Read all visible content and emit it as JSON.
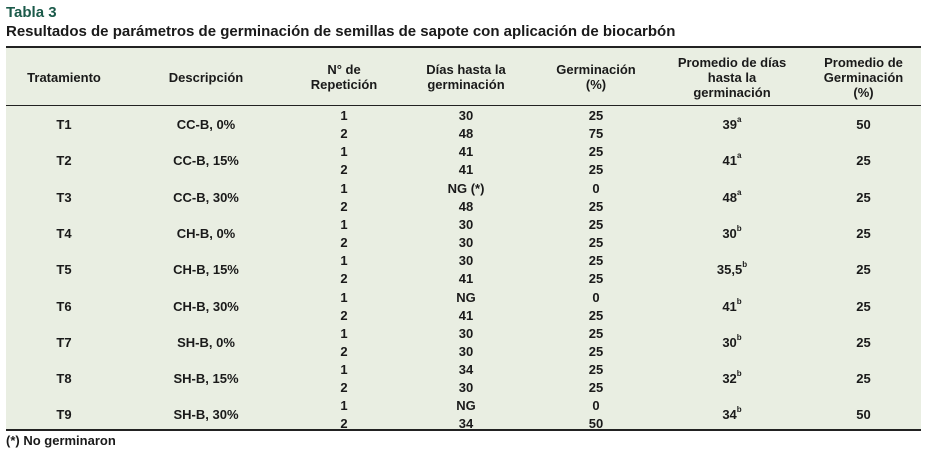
{
  "caption": {
    "label": "Tabla 3",
    "title": "Resultados de parámetros de germinación de semillas de sapote con aplicación de biocarbón"
  },
  "headers": [
    "Tratamiento",
    "Descripción",
    "N° de\nRepetición",
    "Días hasta la\ngerminación",
    "Germinación\n(%)",
    "Promedio de días\nhasta la\ngerminación",
    "Promedio de\nGerminación\n(%)"
  ],
  "rows": [
    {
      "trat": "T1",
      "desc": "CC-B, 0%",
      "reps": [
        "1",
        "2"
      ],
      "dias": [
        "30",
        "48"
      ],
      "germ": [
        "25",
        "75"
      ],
      "prom_dias": "39",
      "prom_sup": "a",
      "prom_germ": "50"
    },
    {
      "trat": "T2",
      "desc": "CC-B, 15%",
      "reps": [
        "1",
        "2"
      ],
      "dias": [
        "41",
        "41"
      ],
      "germ": [
        "25",
        "25"
      ],
      "prom_dias": "41",
      "prom_sup": "a",
      "prom_germ": "25"
    },
    {
      "trat": "T3",
      "desc": "CC-B, 30%",
      "reps": [
        "1",
        "2"
      ],
      "dias": [
        "NG (*)",
        "48"
      ],
      "germ": [
        "0",
        "25"
      ],
      "prom_dias": "48",
      "prom_sup": "a",
      "prom_germ": "25"
    },
    {
      "trat": "T4",
      "desc": "CH-B, 0%",
      "reps": [
        "1",
        "2"
      ],
      "dias": [
        "30",
        "30"
      ],
      "germ": [
        "25",
        "25"
      ],
      "prom_dias": "30",
      "prom_sup": "b",
      "prom_germ": "25"
    },
    {
      "trat": "T5",
      "desc": "CH-B, 15%",
      "reps": [
        "1",
        "2"
      ],
      "dias": [
        "30",
        "41"
      ],
      "germ": [
        "25",
        "25"
      ],
      "prom_dias": "35,5",
      "prom_sup": "b",
      "prom_germ": "25"
    },
    {
      "trat": "T6",
      "desc": "CH-B, 30%",
      "reps": [
        "1",
        "2"
      ],
      "dias": [
        "NG",
        "41"
      ],
      "germ": [
        "0",
        "25"
      ],
      "prom_dias": "41",
      "prom_sup": "b",
      "prom_germ": "25"
    },
    {
      "trat": "T7",
      "desc": "SH-B, 0%",
      "reps": [
        "1",
        "2"
      ],
      "dias": [
        "30",
        "30"
      ],
      "germ": [
        "25",
        "25"
      ],
      "prom_dias": "30",
      "prom_sup": "b",
      "prom_germ": "25"
    },
    {
      "trat": "T8",
      "desc": "SH-B, 15%",
      "reps": [
        "1",
        "2"
      ],
      "dias": [
        "34",
        "30"
      ],
      "germ": [
        "25",
        "25"
      ],
      "prom_dias": "32",
      "prom_sup": "b",
      "prom_germ": "25"
    },
    {
      "trat": "T9",
      "desc": "SH-B, 30%",
      "reps": [
        "1",
        "2"
      ],
      "dias": [
        "NG",
        "34"
      ],
      "germ": [
        "0",
        "50"
      ],
      "prom_dias": "34",
      "prom_sup": "b",
      "prom_germ": "50"
    }
  ],
  "footnote": "(*) No germinaron"
}
